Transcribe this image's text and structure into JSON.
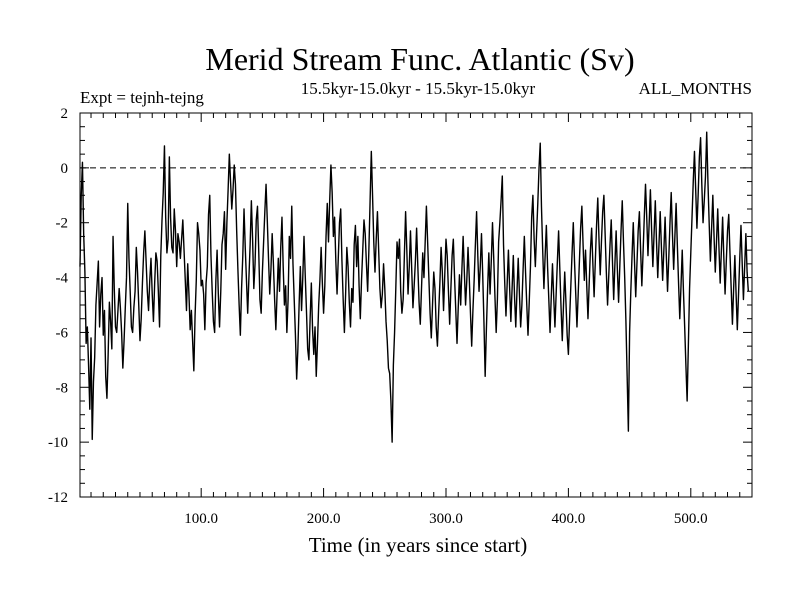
{
  "chart_data": {
    "type": "line",
    "title": "Merid Stream Func. Atlantic (Sv)",
    "subtitle": "15.5kyr-15.0kyr - 15.5kyr-15.0kyr",
    "left_label": "Expt = tejnh-tejng",
    "right_label": "ALL_MONTHS",
    "xlabel": "Time (in years since start)",
    "ylabel": "",
    "xlim": [
      1,
      550
    ],
    "ylim": [
      -12,
      2
    ],
    "xticks": [
      100,
      200,
      300,
      400,
      500
    ],
    "xtick_labels": [
      "100.0",
      "200.0",
      "300.0",
      "400.0",
      "500.0"
    ],
    "yticks": [
      -12,
      -10,
      -8,
      -6,
      -4,
      -2,
      0,
      2
    ],
    "ytick_labels": [
      "-12",
      "-10",
      "-8",
      "-6",
      "-4",
      "-2",
      "0",
      "2"
    ],
    "reference_line": {
      "y": 0,
      "style": "dashed"
    },
    "series": [
      {
        "name": "Merid Stream Func. Atlantic",
        "x_start": 1,
        "x_step": 1,
        "values": [
          -3.6,
          -1.0,
          0.2,
          -2.4,
          -3.8,
          -6.4,
          -5.8,
          -7.2,
          -8.8,
          -6.2,
          -9.9,
          -7.8,
          -6.9,
          -5.0,
          -4.2,
          -3.4,
          -5.8,
          -4.6,
          -4.0,
          -6.1,
          -5.2,
          -7.6,
          -8.4,
          -6.8,
          -4.9,
          -5.6,
          -6.6,
          -2.5,
          -4.4,
          -5.8,
          -6.0,
          -5.2,
          -4.4,
          -5.1,
          -6.0,
          -7.3,
          -6.3,
          -5.1,
          -4.0,
          -1.3,
          -3.3,
          -4.5,
          -5.8,
          -6.0,
          -5.1,
          -4.5,
          -2.9,
          -3.8,
          -5.0,
          -6.3,
          -5.5,
          -4.2,
          -3.1,
          -2.3,
          -3.4,
          -4.5,
          -5.2,
          -4.1,
          -3.3,
          -4.6,
          -5.6,
          -4.2,
          -3.1,
          -3.4,
          -4.5,
          -5.8,
          -3.2,
          -1.9,
          -0.9,
          0.8,
          -1.8,
          -3.1,
          -2.6,
          0.4,
          -1.8,
          -2.9,
          -3.1,
          -1.5,
          -2.3,
          -3.6,
          -2.4,
          -2.7,
          -3.3,
          -2.6,
          -1.9,
          -3.0,
          -4.1,
          -5.2,
          -3.5,
          -4.6,
          -5.9,
          -5.2,
          -6.3,
          -7.4,
          -5.4,
          -4.1,
          -2.0,
          -2.4,
          -3.0,
          -4.3,
          -4.1,
          -4.6,
          -5.9,
          -4.2,
          -3.6,
          -1.7,
          -1.0,
          -3.2,
          -4.5,
          -5.6,
          -6.0,
          -4.1,
          -3.0,
          -4.6,
          -5.8,
          -4.5,
          -2.8,
          -2.4,
          -1.6,
          -3.7,
          -2.0,
          -0.8,
          0.5,
          -0.5,
          -1.5,
          -0.8,
          0.1,
          -0.6,
          -2.3,
          -3.7,
          -5.0,
          -6.1,
          -4.4,
          -3.2,
          -1.5,
          -2.9,
          -4.1,
          -5.3,
          -4.0,
          -2.8,
          -1.2,
          -2.6,
          -4.4,
          -3.5,
          -1.9,
          -1.4,
          -3.0,
          -4.8,
          -5.3,
          -3.8,
          -2.7,
          -1.6,
          -0.6,
          -1.9,
          -3.3,
          -4.6,
          -3.7,
          -2.4,
          -3.5,
          -4.8,
          -5.9,
          -4.6,
          -3.3,
          -4.5,
          -2.9,
          -1.8,
          -3.6,
          -5.0,
          -4.3,
          -6.0,
          -4.8,
          -2.5,
          -3.3,
          -1.4,
          -3.5,
          -4.8,
          -6.1,
          -7.7,
          -6.6,
          -5.0,
          -3.6,
          -5.2,
          -4.0,
          -2.5,
          -3.9,
          -5.2,
          -6.6,
          -7.0,
          -5.5,
          -4.2,
          -5.9,
          -6.8,
          -5.8,
          -7.6,
          -6.4,
          -5.0,
          -4.1,
          -2.9,
          -4.2,
          -5.3,
          -4.3,
          -2.5,
          -1.3,
          -2.7,
          -1.2,
          0.1,
          -0.9,
          -2.5,
          -1.8,
          -3.4,
          -4.6,
          -3.3,
          -2.0,
          -1.5,
          -3.4,
          -4.8,
          -6.0,
          -4.6,
          -2.9,
          -3.6,
          -4.9,
          -5.8,
          -4.4,
          -4.9,
          -2.8,
          -2.1,
          -3.6,
          -2.5,
          -4.3,
          -5.5,
          -4.1,
          -3.0,
          -1.9,
          -2.4,
          -3.5,
          -4.5,
          -3.0,
          -1.2,
          0.6,
          -1.0,
          -2.7,
          -3.8,
          -2.6,
          -1.6,
          -3.0,
          -4.4,
          -5.1,
          -4.6,
          -3.5,
          -4.4,
          -5.6,
          -6.3,
          -7.3,
          -7.5,
          -8.5,
          -10.0,
          -7.2,
          -6.0,
          -4.4,
          -2.7,
          -3.3,
          -2.6,
          -4.5,
          -5.3,
          -4.8,
          -3.2,
          -1.6,
          -3.0,
          -4.6,
          -3.6,
          -2.3,
          -3.7,
          -5.1,
          -4.3,
          -3.4,
          -2.2,
          -3.6,
          -4.9,
          -5.7,
          -4.4,
          -3.1,
          -4.0,
          -2.7,
          -1.4,
          -2.7,
          -4.0,
          -5.3,
          -6.2,
          -5.0,
          -3.8,
          -4.4,
          -5.8,
          -6.5,
          -5.3,
          -4.2,
          -2.9,
          -3.8,
          -5.2,
          -3.9,
          -2.6,
          -3.2,
          -4.5,
          -5.7,
          -4.4,
          -3.2,
          -2.6,
          -4.0,
          -5.2,
          -6.4,
          -5.1,
          -3.9,
          -5.0,
          -3.7,
          -2.5,
          -3.8,
          -5.0,
          -4.1,
          -2.9,
          -4.0,
          -5.3,
          -6.5,
          -5.2,
          -4.1,
          -2.8,
          -1.6,
          -3.2,
          -4.5,
          -3.6,
          -2.4,
          -3.9,
          -5.6,
          -7.6,
          -5.9,
          -4.4,
          -3.1,
          -4.6,
          -3.4,
          -2.0,
          -3.3,
          -4.7,
          -6.0,
          -4.8,
          -2.7,
          -2.0,
          -1.2,
          -0.3,
          -2.8,
          -4.2,
          -5.4,
          -4.2,
          -3.0,
          -4.4,
          -5.6,
          -4.4,
          -3.2,
          -4.7,
          -5.8,
          -4.5,
          -3.3,
          -4.6,
          -5.8,
          -5.0,
          -3.7,
          -2.5,
          -3.8,
          -5.0,
          -6.1,
          -4.9,
          -3.6,
          -1.8,
          -1.0,
          -2.6,
          -3.6,
          -2.4,
          -1.3,
          0.0,
          0.9,
          -1.4,
          -3.0,
          -4.4,
          -3.2,
          -2.1,
          -3.6,
          -4.8,
          -6.0,
          -4.7,
          -3.5,
          -4.7,
          -5.8,
          -4.6,
          -3.4,
          -2.3,
          -3.7,
          -5.1,
          -6.3,
          -5.0,
          -3.8,
          -4.9,
          -6.1,
          -6.8,
          -5.5,
          -4.3,
          -3.1,
          -2.0,
          -3.4,
          -4.6,
          -5.8,
          -4.6,
          -3.4,
          -2.2,
          -1.4,
          -2.8,
          -4.1,
          -3.0,
          -4.3,
          -5.5,
          -4.2,
          -3.0,
          -2.2,
          -3.5,
          -4.7,
          -3.4,
          -2.1,
          -1.1,
          -2.6,
          -3.9,
          -2.7,
          -1.6,
          -1.0,
          -2.4,
          -3.8,
          -5.0,
          -3.9,
          -2.8,
          -1.9,
          -3.4,
          -4.8,
          -3.5,
          -2.3,
          -3.7,
          -4.9,
          -3.6,
          -2.3,
          -1.2,
          -2.7,
          -4.0,
          -5.6,
          -7.6,
          -9.6,
          -6.0,
          -4.5,
          -3.2,
          -2.0,
          -3.4,
          -4.7,
          -3.5,
          -2.3,
          -1.6,
          -3.0,
          -4.3,
          -3.1,
          -1.8,
          -0.6,
          -1.8,
          -3.2,
          -2.0,
          -0.8,
          -2.3,
          -3.6,
          -2.4,
          -1.2,
          -2.7,
          -4.0,
          -2.8,
          -1.6,
          -2.9,
          -4.1,
          -3.0,
          -1.8,
          -3.2,
          -4.5,
          -3.3,
          -2.0,
          -0.9,
          -2.4,
          -3.7,
          -2.5,
          -1.3,
          -2.8,
          -4.2,
          -5.5,
          -4.3,
          -3.0,
          -4.5,
          -5.8,
          -7.2,
          -8.5,
          -6.5,
          -4.4,
          -3.1,
          -1.8,
          -0.5,
          0.6,
          -0.8,
          -2.2,
          -1.0,
          0.4,
          1.1,
          -0.6,
          -2.0,
          -1.2,
          -0.3,
          1.3,
          -0.5,
          -2.0,
          -3.4,
          -2.2,
          -1.0,
          -2.5,
          -3.8,
          -2.7,
          -1.5,
          -2.9,
          -4.2,
          -3.0,
          -1.8,
          -3.3,
          -4.6,
          -3.4,
          -2.3,
          -1.7,
          -3.1,
          -4.4,
          -5.7,
          -4.4,
          -3.2,
          -4.6,
          -5.9,
          -4.6,
          -3.3,
          -2.1,
          -3.5,
          -4.8,
          -3.6,
          -2.4,
          -3.8,
          -4.5
        ]
      }
    ]
  }
}
